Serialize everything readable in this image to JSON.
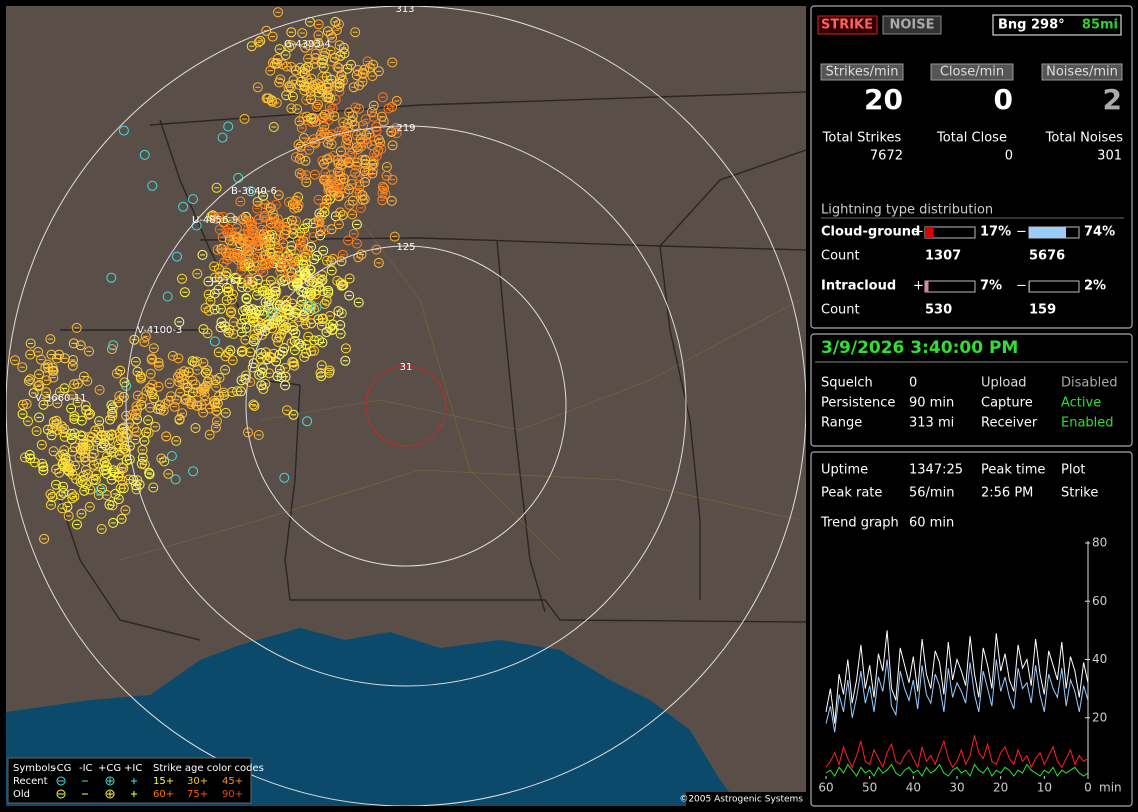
{
  "map": {
    "ring_labels": [
      "313",
      "219",
      "125",
      "31"
    ],
    "storm_labels": [
      "G-4393-4",
      "B-3640-6",
      "U-4856-9",
      "J-2161-3",
      "V-4100-3",
      "V-3660-11"
    ],
    "legend": {
      "symbols_label": "Symbols",
      "columns": [
        "-CG",
        "-IC",
        "+CG",
        "+IC"
      ],
      "age_title": "Strike age color codes",
      "rows": [
        "Recent",
        "Old"
      ],
      "age_codes": [
        [
          "15+",
          "30+",
          "45+"
        ],
        [
          "60+",
          "75+",
          "90+"
        ]
      ]
    },
    "copyright": "©2005 Astrogenic Systems"
  },
  "status": {
    "strike_button": "STRIKE",
    "noise_button": "NOISE",
    "bearing": "Bng 298°",
    "distance": "85mi"
  },
  "rates": [
    {
      "label": "Strikes/min",
      "value": 20,
      "total_label": "Total Strikes",
      "total": 7672
    },
    {
      "label": "Close/min",
      "value": 0,
      "total_label": "Total Close",
      "total": 0
    },
    {
      "label": "Noises/min",
      "value": 2,
      "total_label": "Total Noises",
      "total": 301
    }
  ],
  "distribution": {
    "title": "Lightning type distribution",
    "rows": [
      {
        "label": "Cloud-ground",
        "count_label": "Count",
        "plus_sign": "+",
        "minus_sign": "−",
        "values": [
          17,
          74
        ],
        "value_labels": [
          "17%",
          "74%"
        ],
        "counts": [
          1307,
          5676
        ],
        "colors": [
          "#e00000",
          "#99ccff"
        ]
      },
      {
        "label": "Intracloud",
        "count_label": "Count",
        "plus_sign": "+",
        "minus_sign": "−",
        "values": [
          7,
          2
        ],
        "value_labels": [
          "7%",
          "2%"
        ],
        "counts": [
          530,
          159
        ],
        "colors": [
          "#e080a8",
          "#33cc66"
        ]
      }
    ]
  },
  "datetime": "3/9/2026 3:40:00 PM",
  "settings": [
    [
      "Squelch",
      "0",
      "Upload",
      "Disabled"
    ],
    [
      "Persistence",
      "90 min",
      "Capture",
      "Active"
    ],
    [
      "Range",
      "313 mi",
      "Receiver",
      "Enabled"
    ]
  ],
  "stats": [
    [
      "Uptime",
      "1347:25",
      "Peak time",
      "Plot"
    ],
    [
      "Peak rate",
      "56/min",
      "2:56 PM",
      "Strike"
    ]
  ],
  "trend": {
    "label": "Trend graph",
    "window": "60 min",
    "xlim": [
      60,
      0
    ],
    "xticks": [
      60,
      50,
      40,
      30,
      20,
      10,
      0
    ],
    "x_unit": "min",
    "ylim": [
      0,
      80
    ],
    "yticks": [
      20,
      40,
      60,
      80
    ],
    "x": [
      60,
      59,
      58,
      57,
      56,
      55,
      54,
      53,
      52,
      51,
      50,
      49,
      48,
      47,
      46,
      45,
      44,
      43,
      42,
      41,
      40,
      39,
      38,
      37,
      36,
      35,
      34,
      33,
      32,
      31,
      30,
      29,
      28,
      27,
      26,
      25,
      24,
      23,
      22,
      21,
      20,
      19,
      18,
      17,
      16,
      15,
      14,
      13,
      12,
      11,
      10,
      9,
      8,
      7,
      6,
      5,
      4,
      3,
      2,
      1,
      0
    ],
    "series": [
      {
        "color": "#ffffff",
        "values": [
          22,
          30,
          18,
          35,
          28,
          40,
          25,
          33,
          45,
          30,
          38,
          27,
          42,
          36,
          50,
          30,
          26,
          44,
          38,
          32,
          41,
          29,
          47,
          35,
          30,
          43,
          39,
          28,
          46,
          33,
          40,
          36,
          31,
          48,
          35,
          27,
          44,
          38,
          30,
          49,
          36,
          42,
          33,
          29,
          45,
          37,
          40,
          31,
          47,
          35,
          28,
          43,
          38,
          33,
          46,
          30,
          41,
          36,
          27,
          39,
          32
        ]
      },
      {
        "color": "#99ccff",
        "values": [
          18,
          24,
          15,
          28,
          22,
          33,
          20,
          27,
          36,
          25,
          31,
          22,
          34,
          29,
          40,
          24,
          21,
          36,
          30,
          26,
          33,
          23,
          38,
          28,
          25,
          35,
          31,
          22,
          37,
          27,
          32,
          29,
          25,
          39,
          28,
          22,
          36,
          30,
          24,
          40,
          29,
          34,
          27,
          23,
          37,
          30,
          32,
          25,
          38,
          28,
          22,
          35,
          30,
          27,
          37,
          24,
          33,
          29,
          22,
          31,
          26
        ]
      },
      {
        "color": "#ff2020",
        "values": [
          3,
          5,
          8,
          4,
          10,
          6,
          3,
          7,
          12,
          5,
          4,
          9,
          6,
          3,
          8,
          11,
          5,
          4,
          7,
          9,
          6,
          3,
          10,
          5,
          7,
          4,
          8,
          12,
          6,
          3,
          5,
          9,
          4,
          7,
          14,
          8,
          6,
          11,
          5,
          4,
          8,
          10,
          6,
          4,
          9,
          5,
          7,
          3,
          6,
          8,
          4,
          7,
          10,
          5,
          3,
          6,
          9,
          4,
          7,
          5,
          6
        ]
      },
      {
        "color": "#33dd33",
        "values": [
          1,
          2,
          0,
          3,
          1,
          4,
          2,
          0,
          3,
          1,
          2,
          0,
          3,
          1,
          2,
          4,
          1,
          0,
          2,
          3,
          1,
          2,
          0,
          3,
          1,
          2,
          4,
          1,
          0,
          2,
          3,
          1,
          2,
          0,
          4,
          2,
          1,
          3,
          0,
          2,
          1,
          3,
          2,
          0,
          2,
          1,
          4,
          2,
          1,
          0,
          2,
          1,
          3,
          0,
          2,
          1,
          2,
          3,
          1,
          0,
          1
        ]
      }
    ]
  }
}
